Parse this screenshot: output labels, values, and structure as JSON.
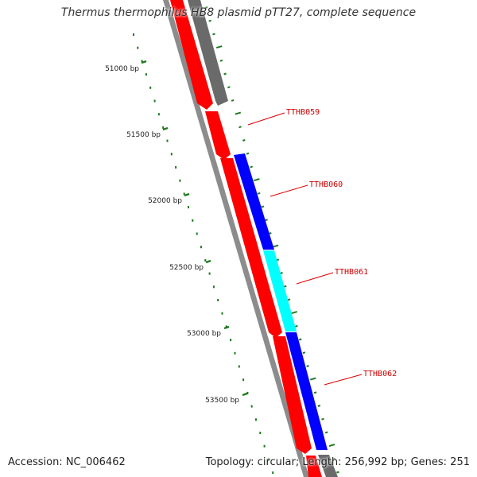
{
  "title": "Thermus thermophilus HB8 plasmid pTT27, complete sequence",
  "footer": {
    "accession": "Accession: NC_006462",
    "summary": "Topology: circular; Length: 256,992 bp; Genes: 251"
  },
  "colors": {
    "gene_red": "#ff0000",
    "gene_blue": "#0000ff",
    "gene_cyan": "#00ffff",
    "gene_gray": "#6a6a6a",
    "backbone_gray": "#8c8c8c",
    "tick_green": "#1e7a1e",
    "label_red": "#cc0000"
  },
  "scale_ticks": [
    {
      "label": "51000 bp"
    },
    {
      "label": "51500 bp"
    },
    {
      "label": "52000 bp"
    },
    {
      "label": "52500 bp"
    },
    {
      "label": "53000 bp"
    },
    {
      "label": "53500 bp"
    }
  ],
  "gene_labels": [
    {
      "name": "TTHB059"
    },
    {
      "name": "TTHB060"
    },
    {
      "name": "TTHB061"
    },
    {
      "name": "TTHB062"
    }
  ]
}
